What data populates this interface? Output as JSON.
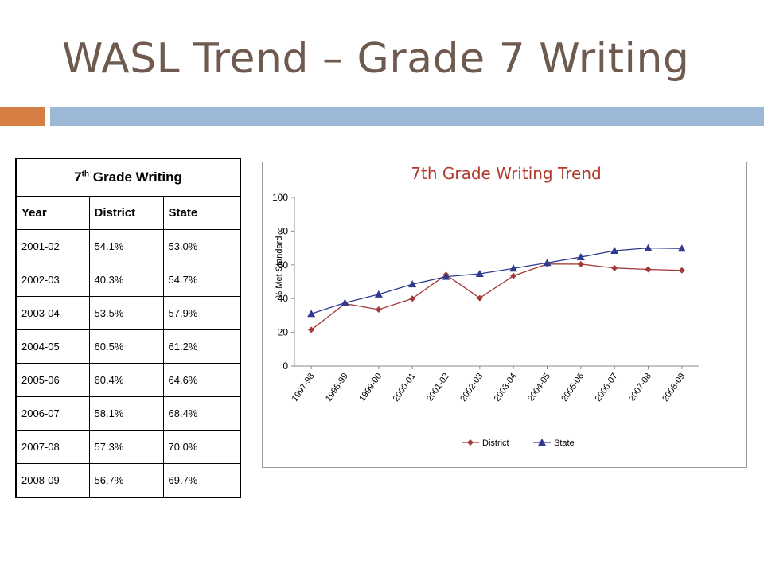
{
  "slide": {
    "title": "WASL Trend – Grade 7 Writing",
    "accent_color": "#d67f45",
    "bar_color": "#9cb8d6",
    "title_color": "#6e5a4e"
  },
  "table": {
    "caption_main": "7",
    "caption_sup": "th",
    "caption_rest": " Grade Writing",
    "headers": [
      "Year",
      "District",
      "State"
    ],
    "rows": [
      [
        "2001-02",
        "54.1%",
        "53.0%"
      ],
      [
        "2002-03",
        "40.3%",
        "54.7%"
      ],
      [
        "2003-04",
        "53.5%",
        "57.9%"
      ],
      [
        "2004-05",
        "60.5%",
        "61.2%"
      ],
      [
        "2005-06",
        "60.4%",
        "64.6%"
      ],
      [
        "2006-07",
        "58.1%",
        "68.4%"
      ],
      [
        "2007-08",
        "57.3%",
        "70.0%"
      ],
      [
        "2008-09",
        "56.7%",
        "69.7%"
      ]
    ]
  },
  "chart_data": {
    "type": "line",
    "title": "7th Grade Writing Trend",
    "title_color": "#b03a2e",
    "ylabel": "% Met Standard",
    "xlabel": "",
    "ylim": [
      0,
      100
    ],
    "yticks": [
      0,
      20,
      40,
      60,
      80,
      100
    ],
    "grid": false,
    "legend_position": "bottom",
    "categories": [
      "1997-98",
      "1998-99",
      "1999-00",
      "2000-01",
      "2001-02",
      "2002-03",
      "2003-04",
      "2004-05",
      "2005-06",
      "2006-07",
      "2007-08",
      "2008-09"
    ],
    "series": [
      {
        "name": "District",
        "color": "#a33a3a",
        "marker": "diamond",
        "values": [
          21.5,
          37.0,
          33.5,
          40.0,
          54.1,
          40.3,
          53.5,
          60.5,
          60.4,
          58.1,
          57.3,
          56.7
        ]
      },
      {
        "name": "State",
        "color": "#2f3a8f",
        "marker": "triangle",
        "values": [
          31.0,
          37.5,
          42.5,
          48.5,
          53.0,
          54.7,
          57.9,
          61.2,
          64.6,
          68.4,
          70.0,
          69.7
        ]
      }
    ]
  }
}
